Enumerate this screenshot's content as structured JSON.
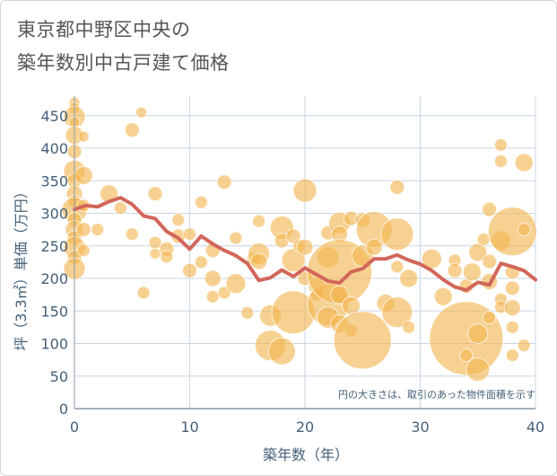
{
  "header": {
    "title_line1": "東京都中野区中央の",
    "title_line2": "築年数別中古戸建て価格"
  },
  "chart_data": {
    "type": "scatter",
    "title": "東京都中野区中央の築年数別中古戸建て価格",
    "xlabel": "築年数（年）",
    "ylabel": "坪（3.3㎡）単価（万円）",
    "xlim": [
      0,
      40
    ],
    "ylim": [
      0,
      480
    ],
    "x_ticks": [
      "0",
      "10",
      "20",
      "30",
      "40"
    ],
    "y_ticks": [
      "0",
      "50",
      "100",
      "150",
      "200",
      "250",
      "300",
      "350",
      "400",
      "450"
    ],
    "grid": true,
    "note": "円の大きさは、取引のあった物件面積を示す",
    "colors": {
      "bubble": "#f2b44f",
      "trend": "#d2665a",
      "grid": "#c9d6e3",
      "axis": "#445f78"
    },
    "scatter": [
      {
        "x": 0,
        "y": 470,
        "r": 6
      },
      {
        "x": 0,
        "y": 462,
        "r": 6
      },
      {
        "x": 0,
        "y": 448,
        "r": 12
      },
      {
        "x": 0,
        "y": 440,
        "r": 6
      },
      {
        "x": 0,
        "y": 420,
        "r": 10
      },
      {
        "x": 0,
        "y": 395,
        "r": 8
      },
      {
        "x": 0,
        "y": 365,
        "r": 12
      },
      {
        "x": 0,
        "y": 350,
        "r": 8
      },
      {
        "x": 0,
        "y": 330,
        "r": 9
      },
      {
        "x": 0,
        "y": 318,
        "r": 7
      },
      {
        "x": 0,
        "y": 305,
        "r": 14
      },
      {
        "x": 0,
        "y": 290,
        "r": 8
      },
      {
        "x": 0,
        "y": 275,
        "r": 10
      },
      {
        "x": 0,
        "y": 262,
        "r": 8
      },
      {
        "x": 0,
        "y": 248,
        "r": 12
      },
      {
        "x": 0,
        "y": 232,
        "r": 8
      },
      {
        "x": 0,
        "y": 215,
        "r": 12
      },
      {
        "x": 0.8,
        "y": 418,
        "r": 6
      },
      {
        "x": 0.8,
        "y": 358,
        "r": 10
      },
      {
        "x": 0.8,
        "y": 312,
        "r": 7
      },
      {
        "x": 0.8,
        "y": 275,
        "r": 8
      },
      {
        "x": 0.8,
        "y": 243,
        "r": 7
      },
      {
        "x": 2,
        "y": 275,
        "r": 7
      },
      {
        "x": 3,
        "y": 330,
        "r": 10
      },
      {
        "x": 4,
        "y": 308,
        "r": 7
      },
      {
        "x": 5,
        "y": 428,
        "r": 8
      },
      {
        "x": 5,
        "y": 268,
        "r": 7
      },
      {
        "x": 5.8,
        "y": 455,
        "r": 6
      },
      {
        "x": 6,
        "y": 178,
        "r": 7
      },
      {
        "x": 7,
        "y": 330,
        "r": 8
      },
      {
        "x": 7,
        "y": 255,
        "r": 7
      },
      {
        "x": 7,
        "y": 238,
        "r": 6
      },
      {
        "x": 8,
        "y": 245,
        "r": 8
      },
      {
        "x": 8,
        "y": 233,
        "r": 7
      },
      {
        "x": 9,
        "y": 290,
        "r": 7
      },
      {
        "x": 9,
        "y": 265,
        "r": 8
      },
      {
        "x": 10,
        "y": 268,
        "r": 7
      },
      {
        "x": 10,
        "y": 212,
        "r": 8
      },
      {
        "x": 11,
        "y": 317,
        "r": 7
      },
      {
        "x": 11,
        "y": 225,
        "r": 7
      },
      {
        "x": 12,
        "y": 243,
        "r": 8
      },
      {
        "x": 12,
        "y": 200,
        "r": 9
      },
      {
        "x": 12,
        "y": 172,
        "r": 7
      },
      {
        "x": 13,
        "y": 348,
        "r": 8
      },
      {
        "x": 13,
        "y": 178,
        "r": 7
      },
      {
        "x": 14,
        "y": 262,
        "r": 7
      },
      {
        "x": 14,
        "y": 192,
        "r": 11
      },
      {
        "x": 15,
        "y": 147,
        "r": 7
      },
      {
        "x": 15.5,
        "y": 230,
        "r": 7
      },
      {
        "x": 16,
        "y": 288,
        "r": 7
      },
      {
        "x": 16,
        "y": 238,
        "r": 12
      },
      {
        "x": 16,
        "y": 226,
        "r": 9
      },
      {
        "x": 17,
        "y": 143,
        "r": 12
      },
      {
        "x": 17,
        "y": 97,
        "r": 17
      },
      {
        "x": 18,
        "y": 278,
        "r": 13
      },
      {
        "x": 18,
        "y": 258,
        "r": 8
      },
      {
        "x": 18,
        "y": 88,
        "r": 15
      },
      {
        "x": 19,
        "y": 265,
        "r": 8
      },
      {
        "x": 19,
        "y": 228,
        "r": 13
      },
      {
        "x": 19,
        "y": 148,
        "r": 24
      },
      {
        "x": 19.5,
        "y": 250,
        "r": 7
      },
      {
        "x": 20,
        "y": 335,
        "r": 13
      },
      {
        "x": 20,
        "y": 248,
        "r": 9
      },
      {
        "x": 20,
        "y": 200,
        "r": 8
      },
      {
        "x": 21,
        "y": 188,
        "r": 9
      },
      {
        "x": 21,
        "y": 175,
        "r": 7
      },
      {
        "x": 22,
        "y": 270,
        "r": 8
      },
      {
        "x": 22,
        "y": 232,
        "r": 12
      },
      {
        "x": 22,
        "y": 160,
        "r": 23
      },
      {
        "x": 22,
        "y": 140,
        "r": 12
      },
      {
        "x": 23,
        "y": 285,
        "r": 12
      },
      {
        "x": 23,
        "y": 268,
        "r": 9
      },
      {
        "x": 23,
        "y": 210,
        "r": 36
      },
      {
        "x": 23,
        "y": 175,
        "r": 10
      },
      {
        "x": 23,
        "y": 130,
        "r": 10
      },
      {
        "x": 24,
        "y": 292,
        "r": 8
      },
      {
        "x": 24,
        "y": 158,
        "r": 10
      },
      {
        "x": 24,
        "y": 120,
        "r": 7
      },
      {
        "x": 25,
        "y": 105,
        "r": 32
      },
      {
        "x": 25,
        "y": 235,
        "r": 12
      },
      {
        "x": 25,
        "y": 290,
        "r": 8
      },
      {
        "x": 26,
        "y": 275,
        "r": 20
      },
      {
        "x": 26,
        "y": 248,
        "r": 9
      },
      {
        "x": 27,
        "y": 162,
        "r": 10
      },
      {
        "x": 28,
        "y": 340,
        "r": 8
      },
      {
        "x": 28,
        "y": 268,
        "r": 18
      },
      {
        "x": 28,
        "y": 218,
        "r": 7
      },
      {
        "x": 28,
        "y": 148,
        "r": 17
      },
      {
        "x": 29,
        "y": 200,
        "r": 10
      },
      {
        "x": 29,
        "y": 125,
        "r": 7
      },
      {
        "x": 31,
        "y": 230,
        "r": 11
      },
      {
        "x": 32,
        "y": 172,
        "r": 10
      },
      {
        "x": 33,
        "y": 228,
        "r": 7
      },
      {
        "x": 33,
        "y": 212,
        "r": 8
      },
      {
        "x": 34,
        "y": 108,
        "r": 41
      },
      {
        "x": 34,
        "y": 82,
        "r": 7
      },
      {
        "x": 34,
        "y": 188,
        "r": 8
      },
      {
        "x": 34.5,
        "y": 210,
        "r": 10
      },
      {
        "x": 35,
        "y": 60,
        "r": 13
      },
      {
        "x": 35,
        "y": 115,
        "r": 11
      },
      {
        "x": 35,
        "y": 240,
        "r": 10
      },
      {
        "x": 35.5,
        "y": 260,
        "r": 7
      },
      {
        "x": 36,
        "y": 140,
        "r": 7
      },
      {
        "x": 36,
        "y": 195,
        "r": 9
      },
      {
        "x": 36,
        "y": 226,
        "r": 8
      },
      {
        "x": 36,
        "y": 306,
        "r": 8
      },
      {
        "x": 37,
        "y": 405,
        "r": 7
      },
      {
        "x": 37,
        "y": 380,
        "r": 7
      },
      {
        "x": 37,
        "y": 258,
        "r": 11
      },
      {
        "x": 37,
        "y": 168,
        "r": 7
      },
      {
        "x": 37,
        "y": 156,
        "r": 7
      },
      {
        "x": 38,
        "y": 272,
        "r": 27
      },
      {
        "x": 38,
        "y": 210,
        "r": 8
      },
      {
        "x": 38,
        "y": 185,
        "r": 8
      },
      {
        "x": 38,
        "y": 155,
        "r": 9
      },
      {
        "x": 38,
        "y": 125,
        "r": 7
      },
      {
        "x": 38,
        "y": 82,
        "r": 7
      },
      {
        "x": 39,
        "y": 378,
        "r": 10
      },
      {
        "x": 39,
        "y": 275,
        "r": 7
      },
      {
        "x": 39,
        "y": 97,
        "r": 7
      }
    ],
    "trend": {
      "x": [
        0,
        1,
        2,
        3,
        4,
        5,
        6,
        7,
        8,
        9,
        10,
        11,
        12,
        13,
        14,
        15,
        16,
        17,
        18,
        19,
        20,
        21,
        22,
        23,
        24,
        25,
        26,
        27,
        28,
        29,
        30,
        31,
        32,
        33,
        34,
        35,
        36,
        37,
        38,
        39,
        40
      ],
      "y": [
        306,
        312,
        310,
        318,
        324,
        314,
        296,
        292,
        272,
        262,
        245,
        265,
        253,
        243,
        235,
        223,
        197,
        201,
        213,
        203,
        216,
        206,
        196,
        193,
        210,
        215,
        230,
        230,
        236,
        228,
        222,
        212,
        198,
        187,
        182,
        194,
        190,
        223,
        218,
        212,
        198
      ]
    }
  }
}
